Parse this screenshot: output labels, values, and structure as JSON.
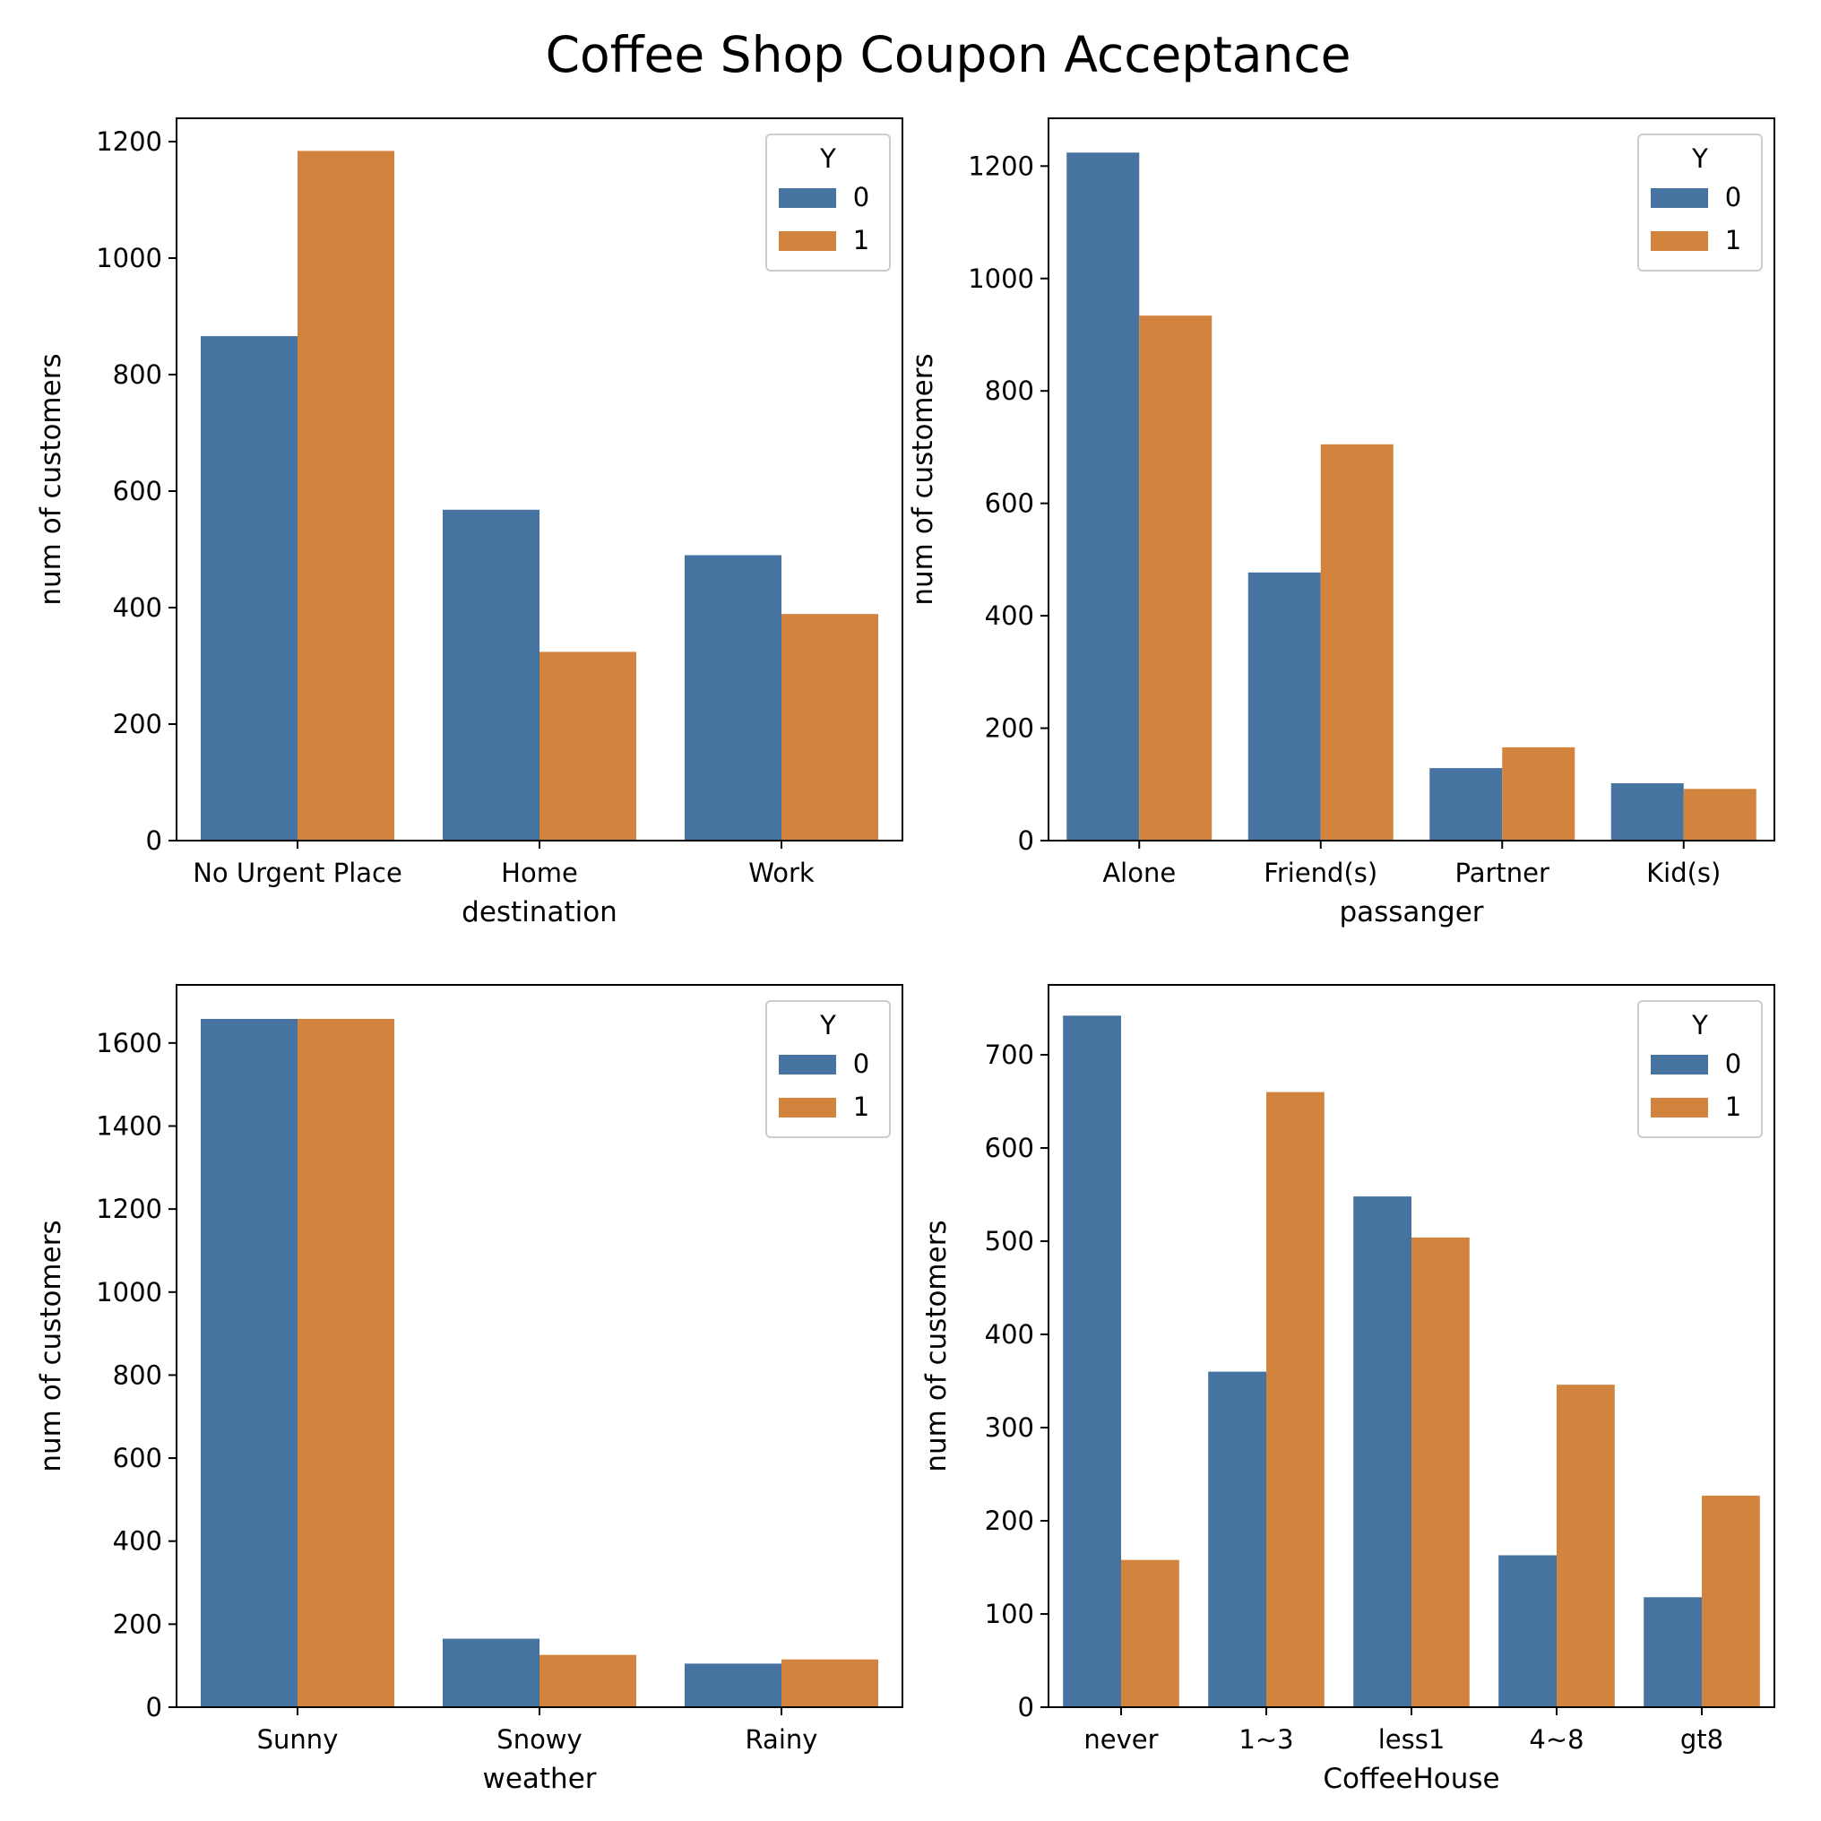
{
  "figure": {
    "title": "Coffee Shop Coupon Acceptance",
    "colors": {
      "y0": "#4773a0",
      "y1": "#d2843f"
    }
  },
  "chart_data": [
    {
      "type": "bar",
      "categories": [
        "No Urgent Place",
        "Home",
        "Work"
      ],
      "series": [
        {
          "name": "0",
          "values": [
            866,
            568,
            490
          ]
        },
        {
          "name": "1",
          "values": [
            1184,
            324,
            389
          ]
        }
      ],
      "xlabel": "destination",
      "ylabel": "num of customers",
      "ylim": [
        0,
        1240
      ],
      "yticks": [
        0,
        200,
        400,
        600,
        800,
        1000,
        1200
      ],
      "legend": {
        "title": "Y",
        "placement": "upper right"
      },
      "grid": false
    },
    {
      "type": "bar",
      "categories": [
        "Alone",
        "Friend(s)",
        "Partner",
        "Kid(s)"
      ],
      "series": [
        {
          "name": "0",
          "values": [
            1224,
            477,
            129,
            102
          ]
        },
        {
          "name": "1",
          "values": [
            934,
            705,
            166,
            92
          ]
        }
      ],
      "xlabel": "passanger",
      "ylabel": "num of customers",
      "ylim": [
        0,
        1285
      ],
      "yticks": [
        0,
        200,
        400,
        600,
        800,
        1000,
        1200
      ],
      "legend": {
        "title": "Y",
        "placement": "upper right"
      },
      "grid": false
    },
    {
      "type": "bar",
      "categories": [
        "Sunny",
        "Snowy",
        "Rainy"
      ],
      "series": [
        {
          "name": "0",
          "values": [
            1658,
            165,
            105
          ]
        },
        {
          "name": "1",
          "values": [
            1658,
            126,
            115
          ]
        }
      ],
      "xlabel": "weather",
      "ylabel": "num of customers",
      "ylim": [
        0,
        1740
      ],
      "yticks": [
        0,
        200,
        400,
        600,
        800,
        1000,
        1200,
        1400,
        1600
      ],
      "legend": {
        "title": "Y",
        "placement": "upper right"
      },
      "grid": false
    },
    {
      "type": "bar",
      "categories": [
        "never",
        "1~3",
        "less1",
        "4~8",
        "gt8"
      ],
      "series": [
        {
          "name": "0",
          "values": [
            742,
            360,
            548,
            163,
            118
          ]
        },
        {
          "name": "1",
          "values": [
            158,
            660,
            504,
            346,
            227
          ]
        }
      ],
      "xlabel": "CoffeeHouse",
      "ylabel": "num of customers",
      "ylim": [
        0,
        775
      ],
      "yticks": [
        0,
        100,
        200,
        300,
        400,
        500,
        600,
        700
      ],
      "legend": {
        "title": "Y",
        "placement": "upper right"
      },
      "grid": false
    }
  ]
}
